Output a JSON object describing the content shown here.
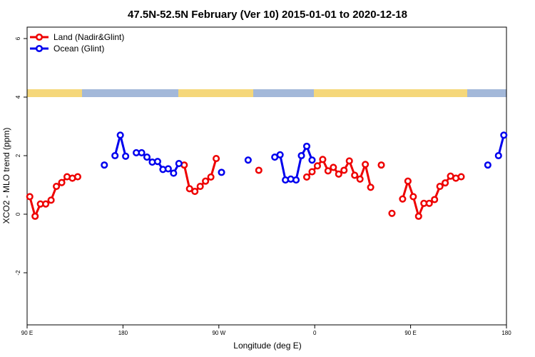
{
  "chart_data": {
    "type": "line",
    "title": "47.5N-52.5N February (Ver 10)   2015-01-01 to 2020-12-18",
    "x_label": "Longitude (deg E)",
    "y_label": "XCO2 - MLO trend (ppm)",
    "x": [
      92.5,
      97.5,
      102.5,
      107.5,
      112.5,
      117.5,
      122.5,
      127.5,
      132.5,
      137.5,
      142.5,
      147.5,
      152.5,
      157.5,
      162.5,
      167.5,
      172.5,
      177.5,
      182.5,
      187.5,
      192.5,
      197.5,
      202.5,
      207.5,
      212.5,
      217.5,
      222.5,
      227.5,
      232.5,
      237.5,
      242.5,
      247.5,
      252.5,
      257.5,
      262.5,
      267.5,
      272.5,
      277.5,
      282.5,
      287.5,
      292.5,
      297.5,
      302.5,
      307.5,
      312.5,
      317.5,
      322.5,
      327.5,
      332.5,
      337.5,
      342.5,
      347.5,
      352.5,
      357.5,
      362.5,
      367.5,
      372.5,
      377.5,
      382.5,
      387.5,
      392.5,
      397.5,
      402.5,
      407.5,
      412.5,
      417.5,
      422.5,
      427.5,
      432.5,
      437.5,
      442.5,
      447.5,
      452.5,
      457.5,
      462.5,
      467.5,
      472.5,
      477.5,
      482.5,
      487.5,
      492.5,
      497.5,
      502.5,
      507.5,
      512.5,
      517.5,
      522.5,
      527.5,
      532.5,
      537.5
    ],
    "series": [
      {
        "name": "Land (Nadir&Glint)",
        "color": "#ee0000",
        "values": [
          0.6,
          -0.07,
          0.35,
          0.35,
          0.48,
          0.95,
          1.08,
          1.28,
          1.23,
          1.28,
          null,
          null,
          null,
          null,
          null,
          null,
          null,
          null,
          null,
          null,
          null,
          null,
          null,
          null,
          null,
          null,
          null,
          null,
          null,
          1.68,
          0.87,
          0.78,
          0.95,
          1.13,
          1.27,
          1.9,
          null,
          null,
          null,
          null,
          null,
          null,
          null,
          1.5,
          null,
          null,
          null,
          null,
          null,
          null,
          null,
          null,
          1.27,
          1.45,
          1.65,
          1.87,
          1.48,
          1.6,
          1.37,
          1.5,
          1.82,
          1.33,
          1.2,
          1.7,
          0.92,
          null,
          1.68,
          null,
          0.03,
          null,
          0.52,
          1.13,
          0.6,
          -0.07,
          0.37,
          0.37,
          0.5,
          0.95,
          1.07,
          1.3,
          1.23,
          1.28,
          null,
          null,
          null,
          null,
          null,
          null,
          null,
          null
        ]
      },
      {
        "name": "Ocean (Glint)",
        "color": "#0000ee",
        "values": [
          null,
          null,
          null,
          null,
          null,
          null,
          null,
          null,
          null,
          null,
          null,
          null,
          null,
          null,
          1.68,
          null,
          2.0,
          2.7,
          1.98,
          null,
          2.1,
          2.1,
          1.95,
          1.78,
          1.8,
          1.53,
          1.55,
          1.4,
          1.73,
          null,
          null,
          null,
          null,
          null,
          null,
          null,
          1.43,
          null,
          null,
          null,
          null,
          1.85,
          null,
          null,
          null,
          null,
          1.95,
          2.03,
          1.17,
          1.2,
          1.17,
          2.0,
          2.32,
          1.85,
          null,
          null,
          null,
          null,
          null,
          null,
          null,
          null,
          null,
          null,
          null,
          null,
          null,
          null,
          null,
          null,
          null,
          null,
          null,
          null,
          null,
          null,
          null,
          null,
          null,
          null,
          null,
          null,
          null,
          null,
          null,
          null,
          1.68,
          null,
          2.0,
          2.7
        ]
      }
    ],
    "xlim": [
      90,
      540
    ],
    "xticks": [
      {
        "value": 90,
        "label": "90 E"
      },
      180,
      {
        "value": 270,
        "label": "90 W"
      },
      {
        "value": 360,
        "label": "0"
      },
      {
        "value": 450,
        "label": "90 E"
      },
      {
        "value": 540,
        "label": "180"
      }
    ],
    "ylim": [
      -3.78,
      6.39
    ],
    "yticks": [
      -2,
      0,
      2,
      4,
      6
    ],
    "legend": "top-left"
  }
}
